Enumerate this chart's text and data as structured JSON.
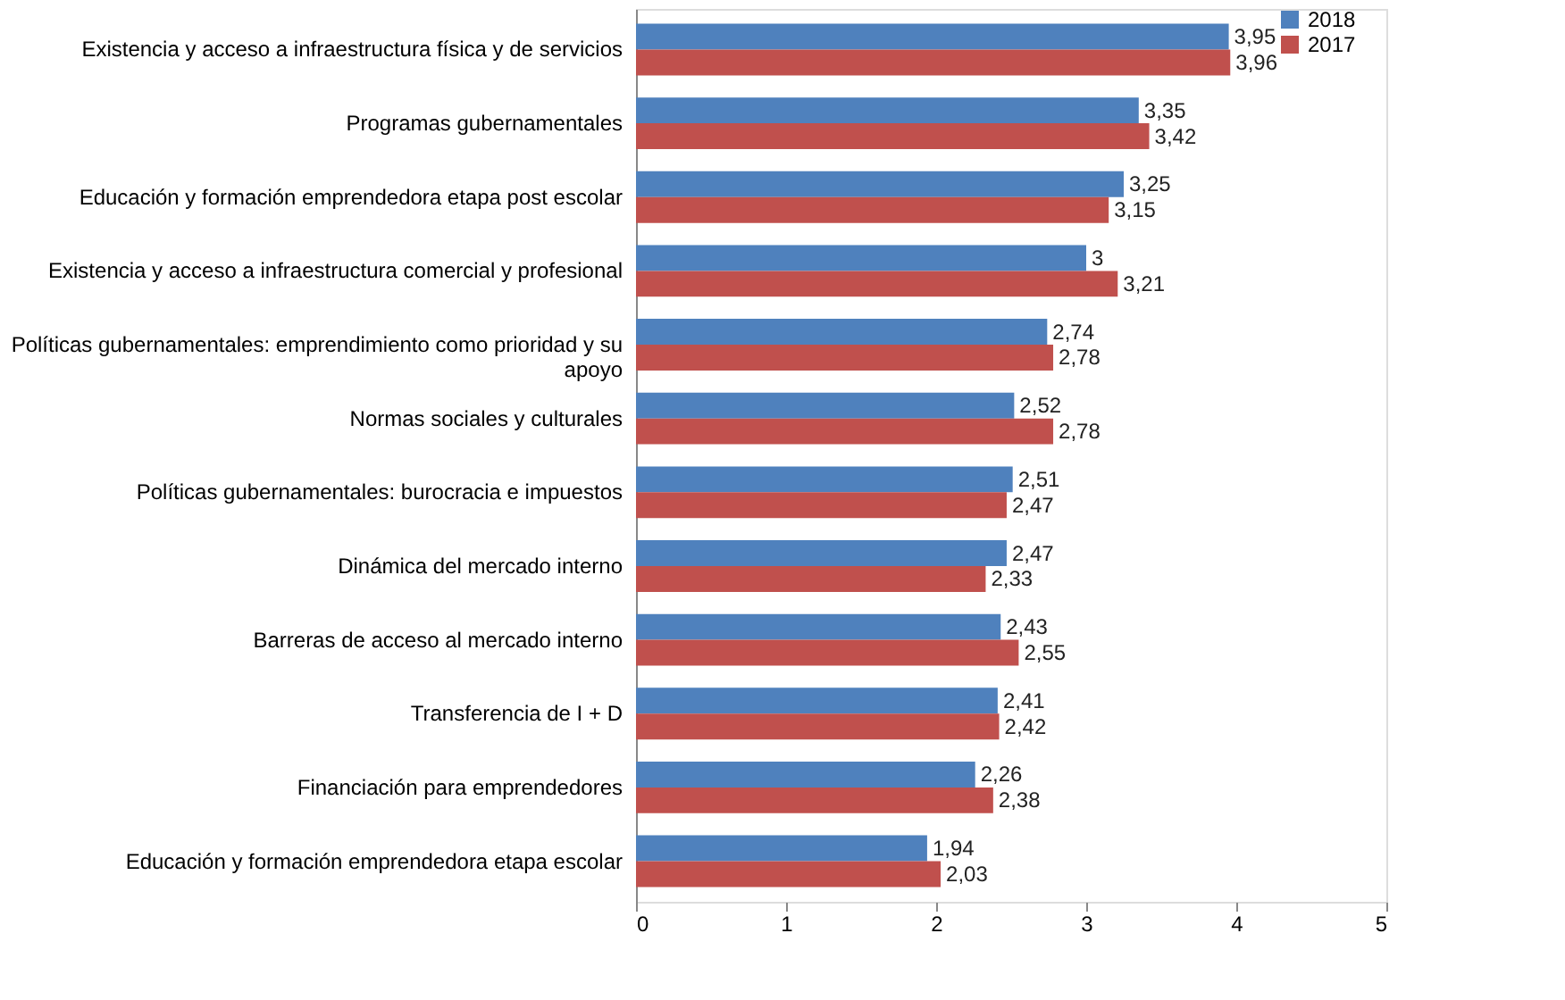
{
  "chart_data": {
    "type": "bar",
    "orientation": "horizontal",
    "categories": [
      "Existencia y acceso a infraestructura física y de servicios",
      "Programas gubernamentales",
      "Educación y formación emprendedora etapa post escolar",
      "Existencia y acceso a infraestructura comercial y profesional",
      "Políticas gubernamentales: emprendimiento como prioridad y su apoyo",
      "Normas sociales y culturales",
      "Políticas gubernamentales: burocracia e impuestos",
      "Dinámica del mercado interno",
      "Barreras de acceso al mercado interno",
      "Transferencia de I + D",
      "Financiación para emprendedores",
      "Educación y formación emprendedora etapa escolar"
    ],
    "series": [
      {
        "name": "2018",
        "color": "#4f81bd",
        "values": [
          3.95,
          3.35,
          3.25,
          3,
          2.74,
          2.52,
          2.51,
          2.47,
          2.43,
          2.41,
          2.26,
          1.94
        ],
        "value_labels": [
          "3,95",
          "3,35",
          "3,25",
          "3",
          "2,74",
          "2,52",
          "2,51",
          "2,47",
          "2,43",
          "2,41",
          "2,26",
          "1,94"
        ]
      },
      {
        "name": "2017",
        "color": "#c0504d",
        "values": [
          3.96,
          3.42,
          3.15,
          3.21,
          2.78,
          2.78,
          2.47,
          2.33,
          2.55,
          2.42,
          2.38,
          2.03
        ],
        "value_labels": [
          "3,96",
          "3,42",
          "3,15",
          "3,21",
          "2,78",
          "2,78",
          "2,47",
          "2,33",
          "2,55",
          "2,42",
          "2,38",
          "2,03"
        ]
      }
    ],
    "xlim": [
      0,
      5
    ],
    "xticks": [
      {
        "value": 0,
        "label": "0"
      },
      {
        "value": 1,
        "label": "1"
      },
      {
        "value": 2,
        "label": "2"
      },
      {
        "value": 3,
        "label": "3"
      },
      {
        "value": 4,
        "label": "4"
      },
      {
        "value": 5,
        "label": "5"
      }
    ],
    "grid": false,
    "legend": "right"
  }
}
